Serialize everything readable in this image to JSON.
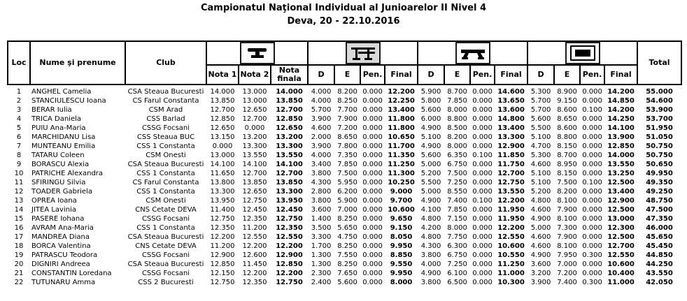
{
  "title": "Campionatul Naţional Individual al Junioarelor II Nivel 4",
  "subtitle": "Deva, 20 - 22.10.2016",
  "table": {
    "headers": {
      "loc": "Loc",
      "name": "Nume şi prenume",
      "club": "Club",
      "total": "Total",
      "vault_cols": [
        "Nota 1",
        "Nota 2",
        "Nota finala"
      ],
      "apparatus_cols": [
        "D",
        "E",
        "Pen.",
        "Final"
      ],
      "apparatus_icons": [
        "vault-icon",
        "uneven-bars-icon",
        "balance-beam-icon",
        "floor-icon"
      ]
    },
    "rows": [
      {
        "loc": "1",
        "name": "ANGHEL Camelia",
        "club": "CSA Steaua Bucuresti",
        "vault": [
          "14.000",
          "13.000",
          "14.000"
        ],
        "bars": [
          "4.000",
          "8.200",
          "0.000",
          "12.200"
        ],
        "beam": [
          "5.900",
          "8.700",
          "0.000",
          "14.600"
        ],
        "floor": [
          "5.300",
          "8.900",
          "0.000",
          "14.200"
        ],
        "total": "55.000"
      },
      {
        "loc": "2",
        "name": "STANCIULESCU Ioana",
        "club": "CS Farul Constanta",
        "vault": [
          "13.850",
          "13.000",
          "13.850"
        ],
        "bars": [
          "4.000",
          "8.250",
          "0.000",
          "12.250"
        ],
        "beam": [
          "5.800",
          "7.850",
          "0.000",
          "13.650"
        ],
        "floor": [
          "5.700",
          "9.150",
          "0.000",
          "14.850"
        ],
        "total": "54.600"
      },
      {
        "loc": "3",
        "name": "BERAR Iulia",
        "club": "CSM Arad",
        "vault": [
          "12.700",
          "12.650",
          "12.700"
        ],
        "bars": [
          "5.700",
          "7.700",
          "0.000",
          "13.400"
        ],
        "beam": [
          "5.600",
          "8.000",
          "0.000",
          "13.600"
        ],
        "floor": [
          "5.700",
          "8.600",
          "0.100",
          "14.200"
        ],
        "total": "53.900"
      },
      {
        "loc": "4",
        "name": "TRICA Daniela",
        "club": "CSS Barlad",
        "vault": [
          "12.850",
          "12.700",
          "12.850"
        ],
        "bars": [
          "3.900",
          "7.900",
          "0.000",
          "11.800"
        ],
        "beam": [
          "6.000",
          "8.800",
          "0.000",
          "14.800"
        ],
        "floor": [
          "5.600",
          "8.650",
          "0.000",
          "14.250"
        ],
        "total": "53.700"
      },
      {
        "loc": "5",
        "name": "PUIU Ana-Maria",
        "club": "CSSG Focsani",
        "vault": [
          "12.650",
          "0.000",
          "12.650"
        ],
        "bars": [
          "4.600",
          "7.200",
          "0.000",
          "11.800"
        ],
        "beam": [
          "4.900",
          "8.500",
          "0.000",
          "13.400"
        ],
        "floor": [
          "5.500",
          "8.600",
          "0.000",
          "14.100"
        ],
        "total": "51.950"
      },
      {
        "loc": "6",
        "name": "MARCHIDANU Lisa",
        "club": "CSS Steaua BUC",
        "vault": [
          "13.150",
          "13.200",
          "13.200"
        ],
        "bars": [
          "2.000",
          "8.650",
          "0.000",
          "10.650"
        ],
        "beam": [
          "5.100",
          "8.200",
          "0.000",
          "13.300"
        ],
        "floor": [
          "5.100",
          "8.800",
          "0.000",
          "13.900"
        ],
        "total": "51.050"
      },
      {
        "loc": "7",
        "name": "MUNTEANU Emilia",
        "club": "CSS 1 Constanta",
        "vault": [
          "0.000",
          "13.300",
          "13.300"
        ],
        "bars": [
          "3.900",
          "7.800",
          "0.000",
          "11.700"
        ],
        "beam": [
          "4.900",
          "8.000",
          "0.000",
          "12.900"
        ],
        "floor": [
          "4.700",
          "8.150",
          "0.000",
          "12.850"
        ],
        "total": "50.750"
      },
      {
        "loc": "8",
        "name": "TATARU Coleen",
        "club": "CSM Onesti",
        "vault": [
          "13.000",
          "13.550",
          "13.550"
        ],
        "bars": [
          "4.000",
          "7.350",
          "0.000",
          "11.350"
        ],
        "beam": [
          "5.600",
          "6.350",
          "0.100",
          "11.850"
        ],
        "floor": [
          "5.300",
          "8.700",
          "0.000",
          "14.000"
        ],
        "total": "50.750"
      },
      {
        "loc": "9",
        "name": "BORASCU Alexia",
        "club": "CSA Steaua Bucuresti",
        "vault": [
          "14.100",
          "14.100",
          "14.100"
        ],
        "bars": [
          "3.400",
          "7.850",
          "0.000",
          "11.250"
        ],
        "beam": [
          "5.000",
          "6.750",
          "0.000",
          "11.750"
        ],
        "floor": [
          "4.600",
          "8.950",
          "0.000",
          "13.550"
        ],
        "total": "50.650"
      },
      {
        "loc": "10",
        "name": "PATRICHE Alexandra",
        "club": "CSS 1 Constanta",
        "vault": [
          "11.650",
          "12.700",
          "12.700"
        ],
        "bars": [
          "3.800",
          "7.500",
          "0.000",
          "11.300"
        ],
        "beam": [
          "5.200",
          "7.500",
          "0.000",
          "12.700"
        ],
        "floor": [
          "5.100",
          "8.150",
          "0.000",
          "13.250"
        ],
        "total": "49.950"
      },
      {
        "loc": "11",
        "name": "SFIRINGU Silvia",
        "club": "CS Farul Constanta",
        "vault": [
          "13.800",
          "13.850",
          "13.850"
        ],
        "bars": [
          "4.300",
          "5.950",
          "0.000",
          "10.250"
        ],
        "beam": [
          "5.500",
          "7.250",
          "0.000",
          "12.750"
        ],
        "floor": [
          "5.100",
          "7.500",
          "0.100",
          "12.500"
        ],
        "total": "49.350"
      },
      {
        "loc": "12",
        "name": "TOADER Gabriela",
        "club": "CSS 1 Constanta",
        "vault": [
          "13.300",
          "12.650",
          "13.300"
        ],
        "bars": [
          "2.800",
          "6.200",
          "0.000",
          "9.000"
        ],
        "beam": [
          "5.000",
          "8.550",
          "0.000",
          "13.550"
        ],
        "floor": [
          "5.200",
          "8.200",
          "0.000",
          "13.400"
        ],
        "total": "49.250"
      },
      {
        "loc": "13",
        "name": "OPREA Ioana",
        "club": "CSM Onesti",
        "vault": [
          "13.950",
          "12.750",
          "13.950"
        ],
        "bars": [
          "3.800",
          "5.900",
          "0.000",
          "9.700"
        ],
        "beam": [
          "4.900",
          "7.400",
          "0.100",
          "12.200"
        ],
        "floor": [
          "4.800",
          "8.100",
          "0.000",
          "12.900"
        ],
        "total": "48.750"
      },
      {
        "loc": "14",
        "name": "JITEA Lavinia",
        "club": "CNS Cetate DEVA",
        "vault": [
          "11.400",
          "12.450",
          "12.450"
        ],
        "bars": [
          "3.600",
          "7.000",
          "0.000",
          "10.600"
        ],
        "beam": [
          "4.100",
          "7.850",
          "0.000",
          "11.950"
        ],
        "floor": [
          "4.600",
          "7.900",
          "0.000",
          "12.500"
        ],
        "total": "47.500"
      },
      {
        "loc": "15",
        "name": "PASERE Iohana",
        "club": "CSSG Focsani",
        "vault": [
          "12.750",
          "12.350",
          "12.750"
        ],
        "bars": [
          "1.400",
          "8.250",
          "0.000",
          "9.650"
        ],
        "beam": [
          "4.800",
          "7.150",
          "0.000",
          "11.950"
        ],
        "floor": [
          "4.900",
          "8.100",
          "0.000",
          "13.000"
        ],
        "total": "47.350"
      },
      {
        "loc": "16",
        "name": "AVRAM Ana-Maria",
        "club": "CSS 1 Constanta",
        "vault": [
          "12.350",
          "11.200",
          "12.350"
        ],
        "bars": [
          "3.500",
          "5.650",
          "0.000",
          "9.150"
        ],
        "beam": [
          "4.200",
          "8.000",
          "0.000",
          "12.200"
        ],
        "floor": [
          "5.000",
          "7.300",
          "0.000",
          "12.300"
        ],
        "total": "46.000"
      },
      {
        "loc": "17",
        "name": "MANDREA Diana",
        "club": "CSA Steaua Bucuresti",
        "vault": [
          "12.200",
          "12.550",
          "12.550"
        ],
        "bars": [
          "3.300",
          "4.750",
          "0.000",
          "8.050"
        ],
        "beam": [
          "4.800",
          "7.750",
          "0.000",
          "12.550"
        ],
        "floor": [
          "4.600",
          "7.900",
          "0.000",
          "12.500"
        ],
        "total": "45.650"
      },
      {
        "loc": "18",
        "name": "BORCA Valentina",
        "club": "CNS Cetate DEVA",
        "vault": [
          "11.200",
          "12.200",
          "12.200"
        ],
        "bars": [
          "1.700",
          "8.250",
          "0.000",
          "9.950"
        ],
        "beam": [
          "4.300",
          "6.300",
          "0.000",
          "10.600"
        ],
        "floor": [
          "4.600",
          "8.100",
          "0.000",
          "12.700"
        ],
        "total": "45.450"
      },
      {
        "loc": "19",
        "name": "PATRASCU Teodora",
        "club": "CSSG Focsani",
        "vault": [
          "12.900",
          "12.600",
          "12.900"
        ],
        "bars": [
          "1.300",
          "7.550",
          "0.000",
          "8.850"
        ],
        "beam": [
          "3.800",
          "6.750",
          "0.000",
          "10.550"
        ],
        "floor": [
          "4.900",
          "7.950",
          "0.300",
          "12.550"
        ],
        "total": "44.850"
      },
      {
        "loc": "20",
        "name": "DIGNIRI Andreea",
        "club": "CSA Steaua Bucuresti",
        "vault": [
          "12.850",
          "11.450",
          "12.850"
        ],
        "bars": [
          "1.300",
          "8.250",
          "0.000",
          "9.550"
        ],
        "beam": [
          "4.000",
          "7.250",
          "0.000",
          "11.250"
        ],
        "floor": [
          "3.600",
          "7.000",
          "0.000",
          "10.600"
        ],
        "total": "44.250"
      },
      {
        "loc": "21",
        "name": "CONSTANTIN Loredana",
        "club": "CSSG Focsani",
        "vault": [
          "12.150",
          "12.200",
          "12.200"
        ],
        "bars": [
          "2.300",
          "7.650",
          "0.000",
          "9.950"
        ],
        "beam": [
          "4.900",
          "6.100",
          "0.000",
          "11.000"
        ],
        "floor": [
          "3.200",
          "7.200",
          "0.000",
          "10.400"
        ],
        "total": "43.550"
      },
      {
        "loc": "22",
        "name": "TUTUNARU Amma",
        "club": "CSS 2 Bucuresti",
        "vault": [
          "12.750",
          "12.350",
          "12.750"
        ],
        "bars": [
          "2.400",
          "5.600",
          "0.000",
          "8.000"
        ],
        "beam": [
          "3.800",
          "6.500",
          "0.000",
          "10.300"
        ],
        "floor": [
          "3.900",
          "7.400",
          "0.300",
          "11.000"
        ],
        "total": "42.050"
      }
    ]
  },
  "colors": {
    "text": "#000000",
    "border": "#000000",
    "bars_icon_bg": "#d9d9d9"
  }
}
